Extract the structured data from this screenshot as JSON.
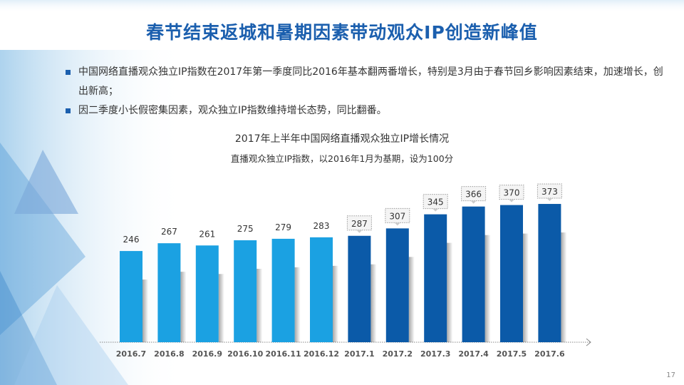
{
  "title": "春节结束返城和暑期因素带动观众IP创造新峰值",
  "bullets": [
    "中国网络直播观众独立IP指数在2017年第一季度同比2016年基本翻两番增长，特别是3月由于春节回乡影响因素结束，加速增长，创出新高；",
    "因二季度小长假密集因素，观众独立IP指数维持增长态势，同比翻番。"
  ],
  "page_number": "17",
  "colors": {
    "title": "#1b5fae",
    "bar_2016": "#1ba1e2",
    "bar_2017": "#0b5aa8"
  },
  "chart_data": {
    "type": "bar",
    "title": "2017年上半年中国网络直播观众独立IP增长情况",
    "subtitle": "直播观众独立IP指数，以2016年1月为基期，设为100分",
    "xlabel": "",
    "ylabel": "",
    "categories": [
      "2016.7",
      "2016.8",
      "2016.9",
      "2016.10",
      "2016.11",
      "2016.12",
      "2017.1",
      "2017.2",
      "2017.3",
      "2017.4",
      "2017.5",
      "2017.6"
    ],
    "values": [
      246,
      267,
      261,
      275,
      279,
      283,
      287,
      307,
      345,
      366,
      370,
      373
    ],
    "ylim": [
      0,
      380
    ],
    "grid": false,
    "data_labels": true
  }
}
